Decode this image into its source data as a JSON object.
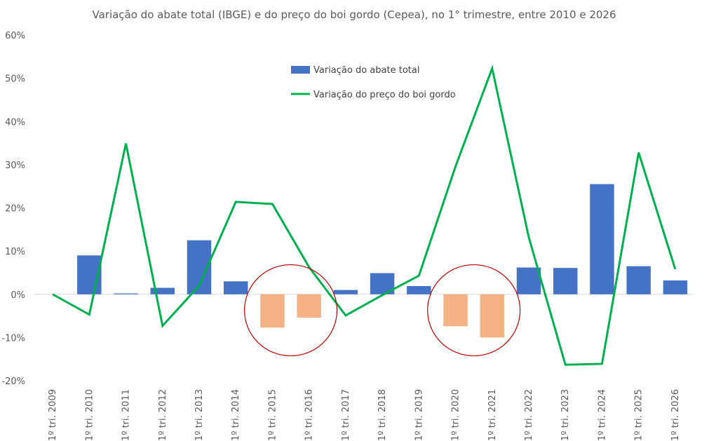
{
  "chart_data": {
    "type": "bar",
    "title": "Variação do abate total (IBGE) e do preço do boi gordo (Cepea), no 1° trimestre, entre 2010 e 2026",
    "xlabel": "",
    "ylabel": "",
    "ylim": [
      -0.2,
      0.6
    ],
    "yticks": [
      "-20%",
      "-10%",
      "0%",
      "10%",
      "20%",
      "30%",
      "40%",
      "50%",
      "60%"
    ],
    "grid": false,
    "legend": "top-center",
    "categories": [
      "1º tri. 2009",
      "1º tri. 2010",
      "1º tri. 2011",
      "1º tri. 2012",
      "1º tri. 2013",
      "1º tri. 2014",
      "1º tri. 2015",
      "1º tri. 2016",
      "1º tri. 2017",
      "1º tri. 2018",
      "1º tri. 2019",
      "1º tri. 2020",
      "1º tri. 2021",
      "1º tri. 2022",
      "1º tri. 2023",
      "1º tri. 2024",
      "1º tri. 2025",
      "1º tri. 2026"
    ],
    "series": [
      {
        "name": "Variação do abate total",
        "kind": "bar",
        "color": "#4472C4",
        "negative_color": "#F4B183",
        "values": [
          null,
          0.09,
          0.002,
          0.015,
          0.125,
          0.03,
          -0.077,
          -0.054,
          0.01,
          0.049,
          0.019,
          -0.074,
          -0.1,
          0.062,
          0.061,
          0.255,
          0.065,
          0.032
        ]
      },
      {
        "name": "Variação do preço do boi gordo",
        "kind": "line",
        "color": "#00B050",
        "values": [
          0.0,
          -0.047,
          0.349,
          -0.073,
          0.02,
          0.214,
          0.209,
          0.063,
          -0.049,
          -0.002,
          0.043,
          0.296,
          0.523,
          0.132,
          -0.163,
          -0.161,
          0.328,
          0.058
        ]
      }
    ],
    "highlight_circles": [
      {
        "categories": [
          "1º tri. 2015",
          "1º tri. 2016"
        ],
        "color": "#C00000"
      },
      {
        "categories": [
          "1º tri. 2020",
          "1º tri. 2021"
        ],
        "color": "#C00000"
      }
    ]
  }
}
